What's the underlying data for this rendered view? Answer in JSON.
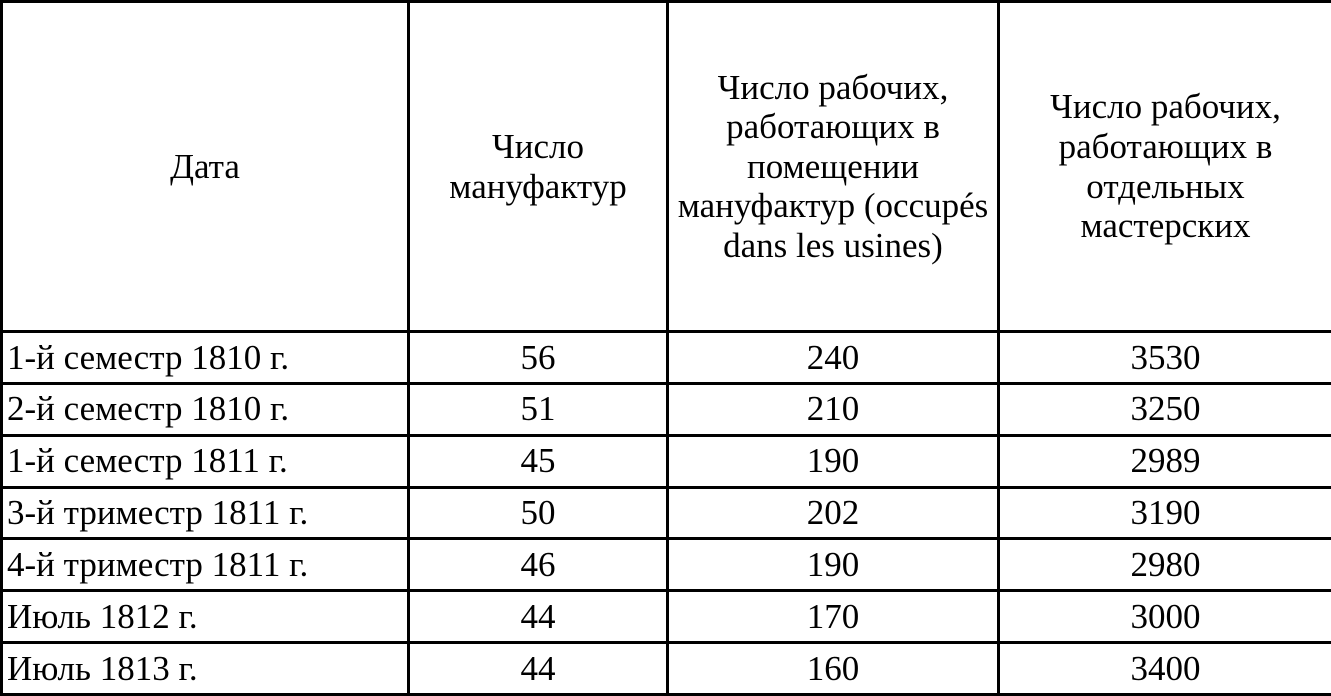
{
  "table": {
    "headers": [
      "Дата",
      "Число мануфактур",
      "Число рабочих, работающих в помещении мануфактур (occupés dans les usines)",
      "Число рабочих, работающих в отдельных мастерских"
    ],
    "rows": [
      [
        "1-й семестр 1810 г.",
        "56",
        "240",
        "3530"
      ],
      [
        "2-й семестр 1810 г.",
        "51",
        "210",
        "3250"
      ],
      [
        "1-й семестр 1811 г.",
        "45",
        "190",
        "2989"
      ],
      [
        "3-й триместр 1811 г.",
        "50",
        "202",
        "3190"
      ],
      [
        "4-й триместр 1811 г.",
        "46",
        "190",
        "2980"
      ],
      [
        "Июль 1812 г.",
        "44",
        "170",
        "3000"
      ],
      [
        "Июль 1813 г.",
        "44",
        "160",
        "3400"
      ]
    ]
  }
}
